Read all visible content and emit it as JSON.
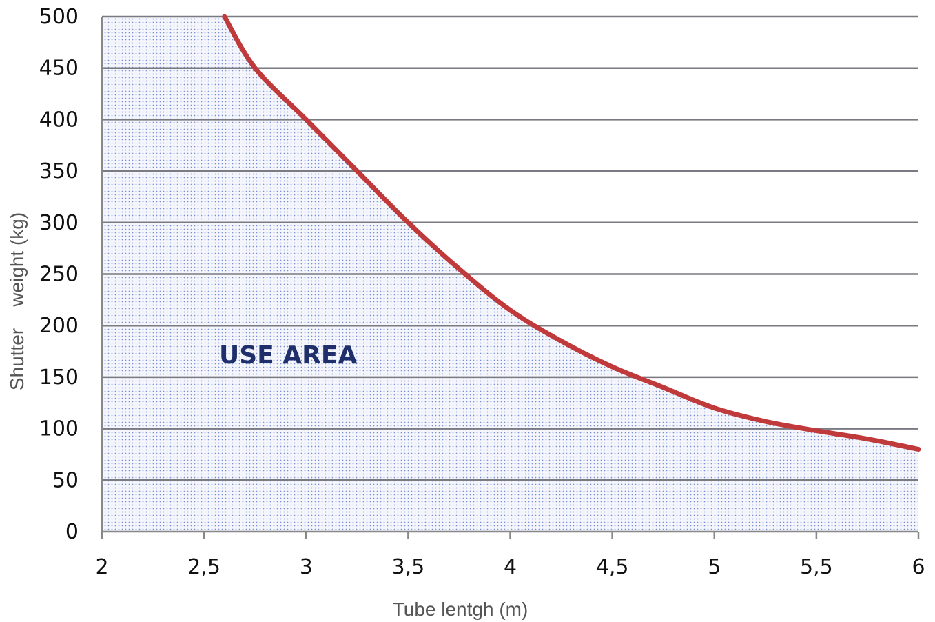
{
  "chart_data": {
    "type": "area",
    "xlabel": "Tube lentgh (m)",
    "ylabel": "Shutter    weight (kg)",
    "xlim": [
      2,
      6
    ],
    "ylim": [
      0,
      500
    ],
    "x_ticks": [
      "2",
      "2,5",
      "3",
      "3,5",
      "4",
      "4,5",
      "5",
      "5,5",
      "6"
    ],
    "y_ticks": [
      "0",
      "50",
      "100",
      "150",
      "200",
      "250",
      "300",
      "350",
      "400",
      "450",
      "500"
    ],
    "grid": "horizontal",
    "annotation": "USE AREA",
    "series": [
      {
        "x": [
          2.6,
          2.75,
          3.0,
          3.25,
          3.5,
          3.75,
          4.0,
          4.25,
          4.5,
          4.75,
          5.0,
          5.25,
          5.5,
          5.75,
          6.0
        ],
        "values": [
          500,
          450,
          400,
          350,
          300,
          255,
          215,
          185,
          160,
          140,
          120,
          107,
          98,
          90,
          80
        ]
      }
    ],
    "colors": {
      "line": "#c0393b",
      "fill": "#7a8fd6",
      "grid": "#7a7a82",
      "axis": "#888888"
    }
  }
}
